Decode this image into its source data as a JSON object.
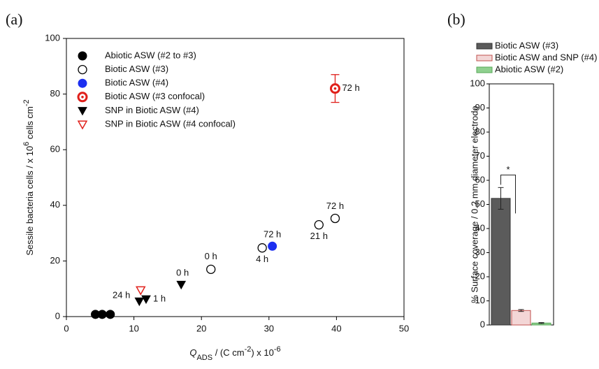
{
  "chart_data": [
    {
      "type": "scatter",
      "panel": "(a)",
      "xlabel": [
        {
          "text": "Q",
          "style": "italic"
        },
        {
          "text": "ADS",
          "style": "sub"
        },
        {
          "text": " / (C cm"
        },
        {
          "text": "-2",
          "style": "sup"
        },
        {
          "text": ") x 10"
        },
        {
          "text": "-6",
          "style": "sup"
        }
      ],
      "ylabel": [
        {
          "text": "Sessile bacteria cells / x 10"
        },
        {
          "text": "6",
          "style": "sup"
        },
        {
          "text": " cells cm"
        },
        {
          "text": "-2",
          "style": "sup"
        }
      ],
      "xlim": [
        0,
        50
      ],
      "xticks": [
        0,
        10,
        20,
        30,
        40,
        50
      ],
      "ylim": [
        0,
        100
      ],
      "yticks": [
        0,
        20,
        40,
        60,
        80,
        100
      ],
      "legend": "upper left",
      "series": [
        {
          "name": "Abiotic ASW (#2 to #3)",
          "marker": "circle",
          "color": "#000000",
          "x": [
            4.3,
            5.3,
            6.5
          ],
          "values": [
            0.8,
            0.8,
            0.8
          ]
        },
        {
          "name": "Biotic ASW (#3)",
          "marker": "open-circle",
          "color": "#000000",
          "x": [
            21.4,
            29,
            37.4,
            39.8
          ],
          "values": [
            17,
            24.7,
            33,
            35.3
          ],
          "point_labels": [
            "0 h",
            "4 h",
            "21 h",
            "72 h"
          ]
        },
        {
          "name": "Biotic ASW (#4)",
          "marker": "circle",
          "color": "#1c2ff0",
          "x": [
            30.5
          ],
          "values": [
            25.3
          ],
          "point_labels": [
            "72 h"
          ]
        },
        {
          "name": "Biotic ASW (#3 confocal)",
          "marker": "dot-circle",
          "color": "#e0201b",
          "x": [
            39.8
          ],
          "values": [
            82
          ],
          "errors": [
            5
          ],
          "point_labels": [
            "72 h"
          ]
        },
        {
          "name": "SNP in Biotic ASW (#4)",
          "marker": "triangle-down",
          "color": "#000000",
          "x": [
            10.8,
            11.8,
            17
          ],
          "values": [
            5.5,
            6.3,
            11.5
          ],
          "point_labels": [
            "24 h",
            "1 h",
            "0 h"
          ]
        },
        {
          "name": "SNP in Biotic ASW (#4 confocal)",
          "marker": "open-triangle-down",
          "color": "#e0201b",
          "x": [
            11
          ],
          "values": [
            9.5
          ]
        }
      ]
    },
    {
      "type": "bar",
      "panel": "(b)",
      "ylabel": "% Surface coverage / 0.2 mm diameter electrode",
      "ylim": [
        0,
        100
      ],
      "yticks": [
        0,
        10,
        20,
        30,
        40,
        50,
        60,
        70,
        80,
        90,
        100
      ],
      "categories": [
        null
      ],
      "significance": "*",
      "series": [
        {
          "name": "Biotic ASW (#3)",
          "color": "#5b5b5b",
          "edge": "#333333",
          "values": [
            52.5
          ],
          "errors": [
            4.5
          ]
        },
        {
          "name": "Biotic ASW and SNP (#4)",
          "color": "#f3d6d6",
          "edge": "#c0504d",
          "values": [
            6
          ],
          "errors": [
            0.4
          ]
        },
        {
          "name": "Abiotic ASW (#2)",
          "color": "#8fd08f",
          "edge": "#5aa85a",
          "values": [
            0.8
          ],
          "errors": [
            0.2
          ]
        }
      ]
    }
  ]
}
